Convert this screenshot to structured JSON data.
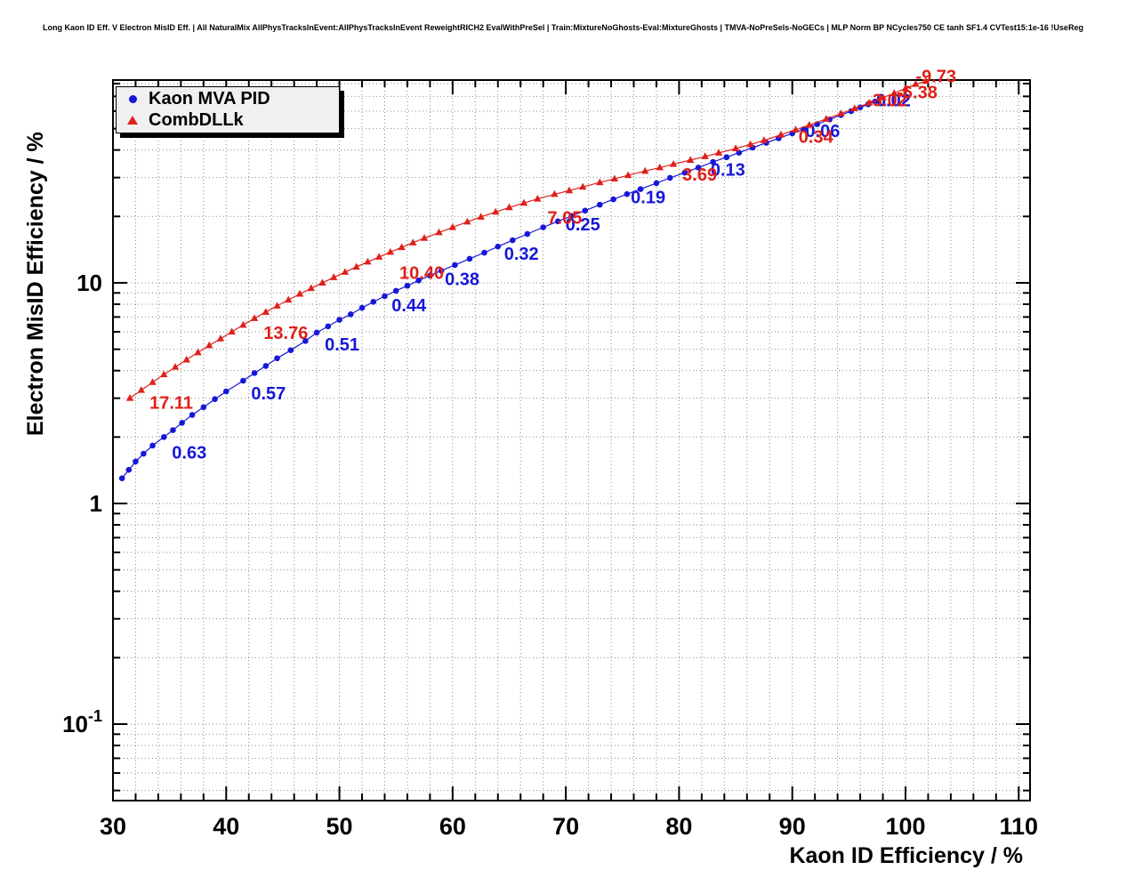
{
  "header": {
    "title": "Long Kaon ID Eff. V Electron MisID Eff. | All NaturalMix AllPhysTracksInEvent:AllPhysTracksInEvent ReweightRICH2 EvalWithPreSel | Train:MixtureNoGhosts-Eval:MixtureGhosts | TMVA-NoPreSels-NoGECs | MLP Norm BP NCycles750 CE tanh SF1.4 CVTest15:1e-16 !UseReg"
  },
  "chart_data": {
    "type": "line",
    "title": "",
    "xlabel": "Kaon ID Efficiency / %",
    "ylabel": "Electron MisID Efficiency / %",
    "x_ticks": [
      30,
      40,
      50,
      60,
      70,
      80,
      90,
      100,
      110
    ],
    "x_minor_step": 2,
    "xlim": [
      30,
      111
    ],
    "ylim": [
      0.045,
      83
    ],
    "y_scale": "log",
    "y_ticks": [
      {
        "v": 10,
        "t": "10",
        "sup": ""
      },
      {
        "v": 1,
        "t": "1",
        "sup": ""
      },
      {
        "v": 0.1,
        "t": "10",
        "sup": "-1"
      }
    ],
    "grid": "dotted",
    "grid_color": "#8a8a8a",
    "frame_color": "#000000",
    "legend_position": "top-left",
    "series": [
      {
        "name": "Kaon MVA PID",
        "color": "#1717d8",
        "marker": "circle",
        "points": [
          [
            30.8,
            1.3
          ],
          [
            31.4,
            1.42
          ],
          [
            32.0,
            1.55
          ],
          [
            32.7,
            1.68
          ],
          [
            33.5,
            1.83
          ],
          [
            34.5,
            2.0
          ],
          [
            35.3,
            2.15
          ],
          [
            36.1,
            2.32
          ],
          [
            37.0,
            2.52
          ],
          [
            38.0,
            2.73
          ],
          [
            39.0,
            2.97
          ],
          [
            40.0,
            3.22
          ],
          [
            41.5,
            3.6
          ],
          [
            42.5,
            3.9
          ],
          [
            43.5,
            4.2
          ],
          [
            44.5,
            4.55
          ],
          [
            45.7,
            4.95
          ],
          [
            47.0,
            5.45
          ],
          [
            48.0,
            5.95
          ],
          [
            49.0,
            6.35
          ],
          [
            50.0,
            6.8
          ],
          [
            51.0,
            7.2
          ],
          [
            52.0,
            7.7
          ],
          [
            53.0,
            8.2
          ],
          [
            54.0,
            8.7
          ],
          [
            55.0,
            9.2
          ],
          [
            56.0,
            9.7
          ],
          [
            57.0,
            10.25
          ],
          [
            58.0,
            10.8
          ],
          [
            59.0,
            11.35
          ],
          [
            60.2,
            12.05
          ],
          [
            61.5,
            12.85
          ],
          [
            62.8,
            13.7
          ],
          [
            64.0,
            14.6
          ],
          [
            65.3,
            15.6
          ],
          [
            66.6,
            16.65
          ],
          [
            68.0,
            17.85
          ],
          [
            69.3,
            19.0
          ],
          [
            70.5,
            20.1
          ],
          [
            71.7,
            21.25
          ],
          [
            73.0,
            22.6
          ],
          [
            74.2,
            23.9
          ],
          [
            75.4,
            25.25
          ],
          [
            76.6,
            26.6
          ],
          [
            78.0,
            28.3
          ],
          [
            79.2,
            29.9
          ],
          [
            80.5,
            31.6
          ],
          [
            81.7,
            33.3
          ],
          [
            83.0,
            35.3
          ],
          [
            84.2,
            37.1
          ],
          [
            85.3,
            38.9
          ],
          [
            86.5,
            41.0
          ],
          [
            87.7,
            43.1
          ],
          [
            88.8,
            45.2
          ],
          [
            90.0,
            47.6
          ],
          [
            91.0,
            49.7
          ],
          [
            92.2,
            52.4
          ],
          [
            93.3,
            55.0
          ],
          [
            94.3,
            57.6
          ],
          [
            95.2,
            60.0
          ],
          [
            96.0,
            62.4
          ],
          [
            96.7,
            64.4
          ],
          [
            97.3,
            66.3
          ]
        ],
        "cut_labels": [
          {
            "text": "0.63",
            "x": 34.5,
            "y": 2.0,
            "dx": 9,
            "dy": 24
          },
          {
            "text": "0.57",
            "x": 41.5,
            "y": 3.6,
            "dx": 9,
            "dy": 21
          },
          {
            "text": "0.51",
            "x": 48.0,
            "y": 5.95,
            "dx": 9,
            "dy": 20
          },
          {
            "text": "0.44",
            "x": 55.0,
            "y": 9.2,
            "dx": -5,
            "dy": 23
          },
          {
            "text": "0.38",
            "x": 59.0,
            "y": 11.35,
            "dx": 4,
            "dy": 16
          },
          {
            "text": "0.32",
            "x": 64.0,
            "y": 14.6,
            "dx": 7,
            "dy": 15
          },
          {
            "text": "0.25",
            "x": 71.7,
            "y": 21.25,
            "dx": -22,
            "dy": 22
          },
          {
            "text": "0.19",
            "x": 76.6,
            "y": 26.6,
            "dx": -11,
            "dy": 16
          },
          {
            "text": "0.13",
            "x": 85.3,
            "y": 38.9,
            "dx": -32,
            "dy": 26
          },
          {
            "text": "0.06",
            "x": 91.0,
            "y": 49.7,
            "dx": 2,
            "dy": 9
          },
          {
            "text": "0.02",
            "x": 96.7,
            "y": 64.4,
            "dx": 9,
            "dy": 2
          }
        ]
      },
      {
        "name": "CombDLLk",
        "color": "#df201a",
        "marker": "triangle",
        "points": [
          [
            31.5,
            3.0
          ],
          [
            32.5,
            3.26
          ],
          [
            33.5,
            3.54
          ],
          [
            34.5,
            3.84
          ],
          [
            35.5,
            4.15
          ],
          [
            36.5,
            4.48
          ],
          [
            37.5,
            4.83
          ],
          [
            38.5,
            5.2
          ],
          [
            39.5,
            5.58
          ],
          [
            40.5,
            6.0
          ],
          [
            41.5,
            6.44
          ],
          [
            42.5,
            6.9
          ],
          [
            43.5,
            7.37
          ],
          [
            44.5,
            7.86
          ],
          [
            45.5,
            8.37
          ],
          [
            46.5,
            8.9
          ],
          [
            47.5,
            9.44
          ],
          [
            48.5,
            10.0
          ],
          [
            49.5,
            10.58
          ],
          [
            50.5,
            11.18
          ],
          [
            51.5,
            11.8
          ],
          [
            52.5,
            12.44
          ],
          [
            53.5,
            13.1
          ],
          [
            54.5,
            13.78
          ],
          [
            55.5,
            14.48
          ],
          [
            56.5,
            15.2
          ],
          [
            57.5,
            15.94
          ],
          [
            58.8,
            16.9
          ],
          [
            60.0,
            17.85
          ],
          [
            61.3,
            18.9
          ],
          [
            62.5,
            19.9
          ],
          [
            63.8,
            20.95
          ],
          [
            65.0,
            21.95
          ],
          [
            66.3,
            23.0
          ],
          [
            67.5,
            24.0
          ],
          [
            69.0,
            25.2
          ],
          [
            70.3,
            26.2
          ],
          [
            71.5,
            27.2
          ],
          [
            73.0,
            28.5
          ],
          [
            74.3,
            29.6
          ],
          [
            75.5,
            30.7
          ],
          [
            77.0,
            32.1
          ],
          [
            78.3,
            33.3
          ],
          [
            79.5,
            34.5
          ],
          [
            81.0,
            36.0
          ],
          [
            82.3,
            37.4
          ],
          [
            83.5,
            38.8
          ],
          [
            85.0,
            40.6
          ],
          [
            86.3,
            42.4
          ],
          [
            87.5,
            44.2
          ],
          [
            89.0,
            46.9
          ],
          [
            90.3,
            49.4
          ],
          [
            91.5,
            51.9
          ],
          [
            93.0,
            55.3
          ],
          [
            94.3,
            58.5
          ],
          [
            95.5,
            61.7
          ],
          [
            96.8,
            65.4
          ],
          [
            98.0,
            69.0
          ],
          [
            99.0,
            72.4
          ],
          [
            100.0,
            76.0
          ],
          [
            100.9,
            79.5
          ],
          [
            101.8,
            82.0
          ]
        ],
        "cut_labels": [
          {
            "text": "17.11",
            "x": 31.5,
            "y": 3.0,
            "dx": 22,
            "dy": 12
          },
          {
            "text": "13.76",
            "x": 45.5,
            "y": 8.37,
            "dx": -28,
            "dy": 44
          },
          {
            "text": "10.40",
            "x": 57.5,
            "y": 15.94,
            "dx": -28,
            "dy": 46
          },
          {
            "text": "7.05",
            "x": 69.0,
            "y": 25.2,
            "dx": -8,
            "dy": 33
          },
          {
            "text": "3.69",
            "x": 81.0,
            "y": 36.0,
            "dx": -9,
            "dy": 23
          },
          {
            "text": "0.34",
            "x": 91.5,
            "y": 51.9,
            "dx": -12,
            "dy": 20
          },
          {
            "text": "-3.02",
            "x": 96.8,
            "y": 65.4,
            "dx": -3,
            "dy": 4
          },
          {
            "text": "-6.38",
            "x": 99.0,
            "y": 72.4,
            "dx": 3,
            "dy": 6
          },
          {
            "text": "-9.73",
            "x": 100.9,
            "y": 79.5,
            "dx": 0,
            "dy": -2
          }
        ]
      }
    ]
  }
}
